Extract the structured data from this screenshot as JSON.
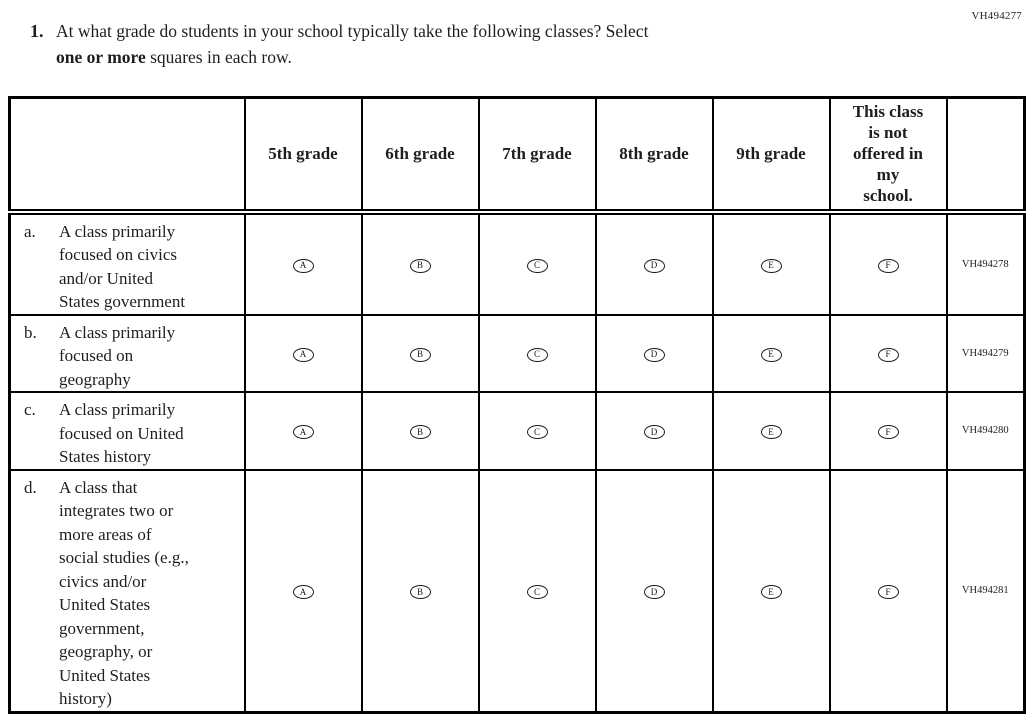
{
  "page": {
    "top_right_code": "VH494277"
  },
  "question": {
    "number": "1.",
    "line1": "At what grade do students in your school typically take the following classes? Select",
    "line2_bold": "one or more",
    "line2_rest": " squares in each row."
  },
  "table": {
    "columns": [
      "",
      "5th grade",
      "6th grade",
      "7th grade",
      "8th grade",
      "9th grade",
      "This class\nis not\noffered in\nmy\nschool.",
      ""
    ],
    "options": [
      "A",
      "B",
      "C",
      "D",
      "E",
      "F"
    ],
    "rows": [
      {
        "prefix": "a.",
        "label": "A class primarily\nfocused on civics\nand/or United\nStates government",
        "code": "VH494278"
      },
      {
        "prefix": "b.",
        "label": "A class primarily\nfocused on\ngeography",
        "code": "VH494279"
      },
      {
        "prefix": "c.",
        "label": "A class primarily\nfocused on United\nStates history",
        "code": "VH494280"
      },
      {
        "prefix": "d.",
        "label": "A class that\nintegrates two or\nmore areas of\nsocial studies (e.g.,\ncivics and/or\nUnited States\ngovernment,\ngeography, or\nUnited States\nhistory)",
        "code": "VH494281"
      }
    ]
  },
  "colors": {
    "text": "#1e1e1e",
    "border": "#000000",
    "background": "#ffffff"
  }
}
